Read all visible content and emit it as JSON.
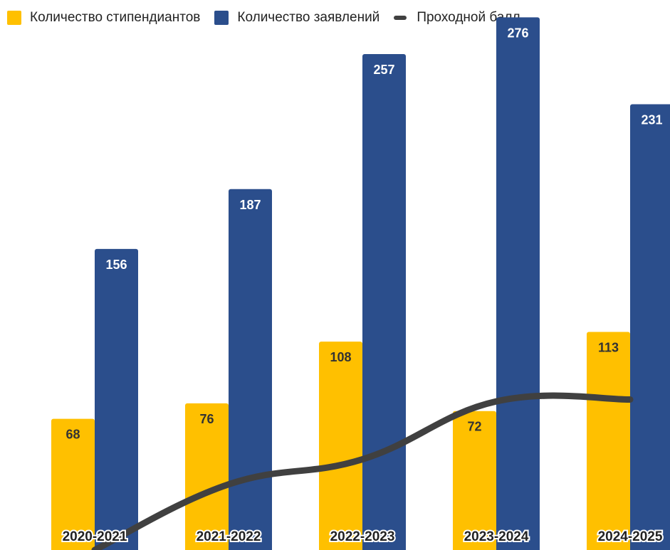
{
  "chart_data": {
    "type": "bar",
    "categories": [
      "2020-2021",
      "2021-2022",
      "2022-2023",
      "2023-2024",
      "2024-2025"
    ],
    "series": [
      {
        "name": "Количество стипендиантов",
        "values": [
          68,
          76,
          108,
          72,
          113
        ],
        "color": "#FFC000",
        "label_color": "#333333"
      },
      {
        "name": "Количество заявлений",
        "values": [
          156,
          187,
          257,
          276,
          231
        ],
        "color": "#2B4E8C",
        "label_color": "#ffffff"
      }
    ],
    "line_series": {
      "name": "Проходной балл",
      "values": [
        0,
        34,
        47,
        77,
        78
      ],
      "color": "#404040"
    },
    "ylim": [
      0,
      285
    ],
    "legend_position": "top-left",
    "grid": false
  }
}
